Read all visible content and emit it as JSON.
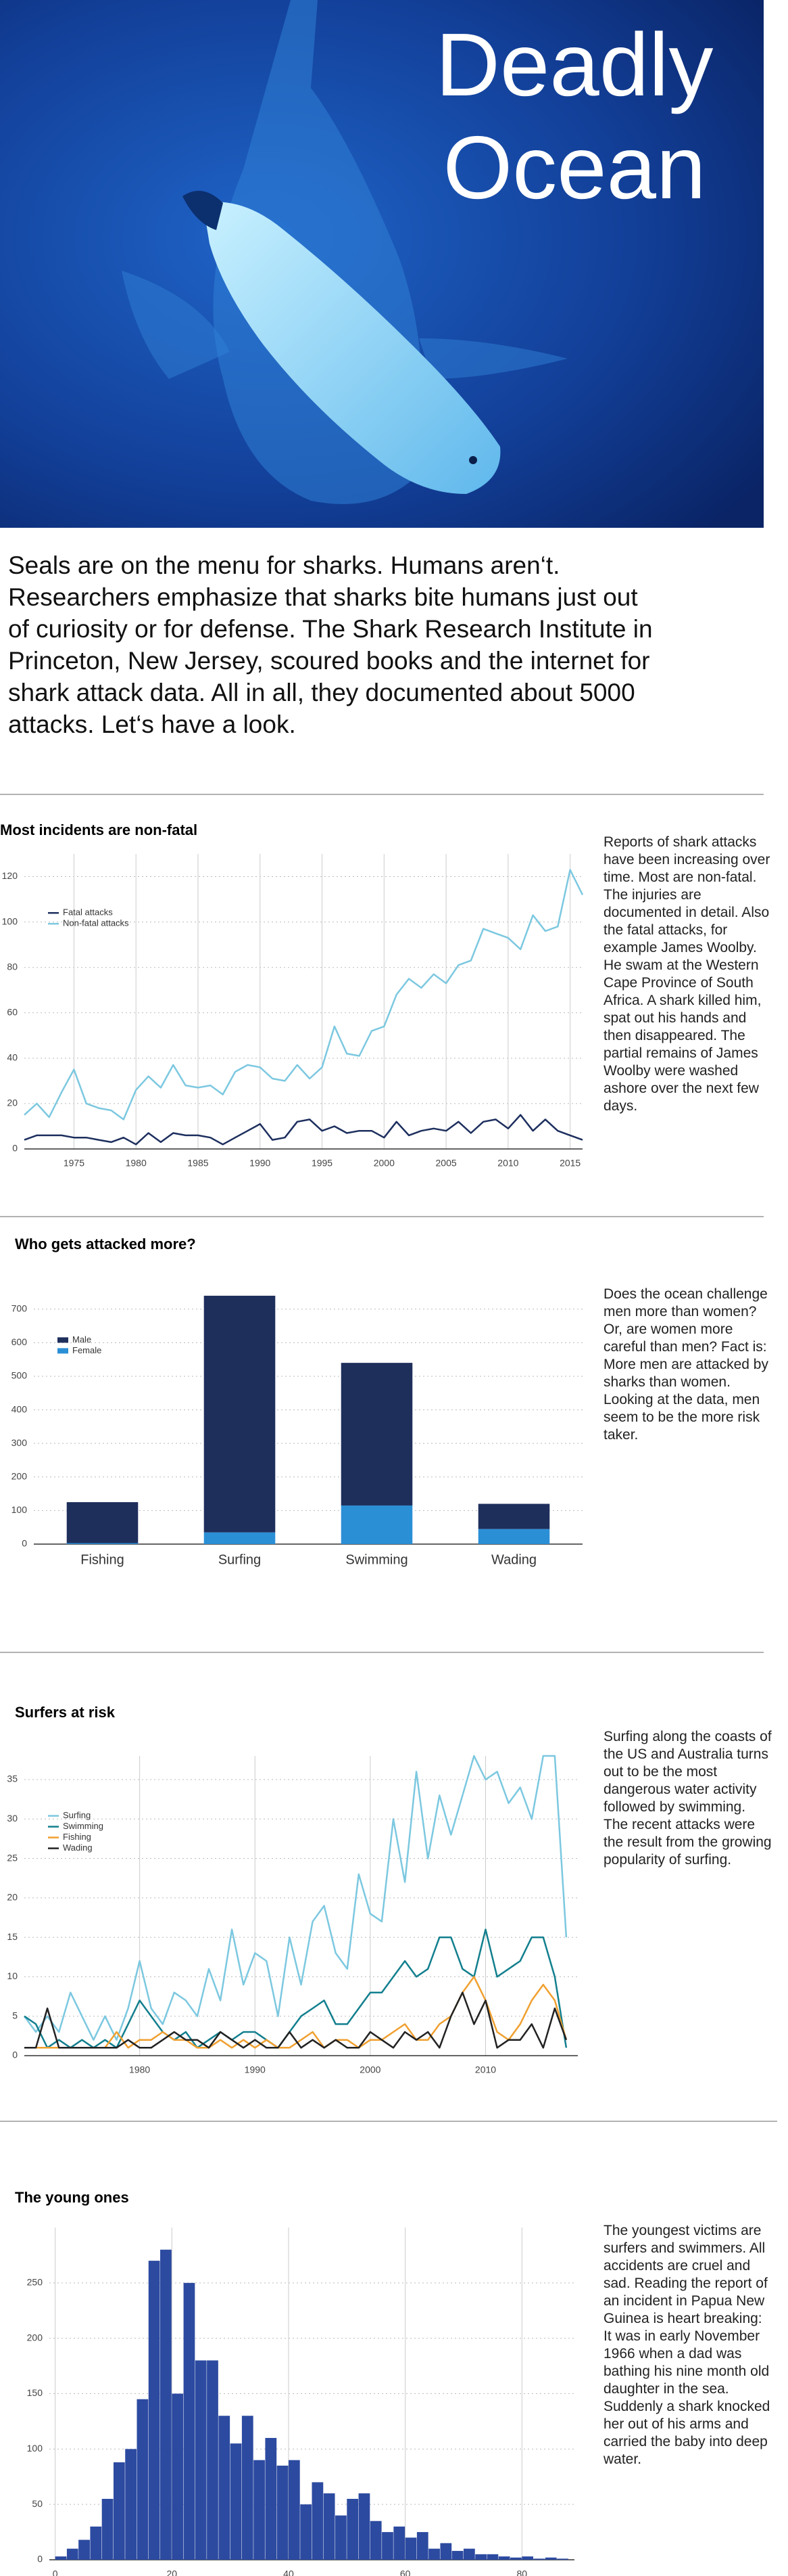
{
  "hero": {
    "title": "Deadly Ocean"
  },
  "intro": "Seals are on the menu for sharks. Humans aren‘t. Researchers emphasize that sharks bite humans just out of curiosity or for defense. The Shark Research Institute in Princeton, New Jersey, scoured books and the internet for shark attack data. All in all, they documented about 5000 attacks. Let‘s have a look.",
  "chart_data": [
    {
      "type": "line",
      "title": "Most incidents are non-fatal",
      "text": "Reports of shark attacks have been increasing over time. Most are non-fatal. The injuries are documented in detail. Also the fatal attacks, for example James Woolby. He swam at the Western Cape Province of South Africa. A shark killed him, spat out his hands and then disappeared. The partial remains of James Woolby were washed ashore over the next few days.",
      "x": [
        1971,
        1972,
        1973,
        1974,
        1975,
        1976,
        1977,
        1978,
        1979,
        1980,
        1981,
        1982,
        1983,
        1984,
        1985,
        1986,
        1987,
        1988,
        1989,
        1990,
        1991,
        1992,
        1993,
        1994,
        1995,
        1996,
        1997,
        1998,
        1999,
        2000,
        2001,
        2002,
        2003,
        2004,
        2005,
        2006,
        2007,
        2008,
        2009,
        2010,
        2011,
        2012,
        2013,
        2014,
        2015,
        2016
      ],
      "series": [
        {
          "name": "Fatal attacks",
          "color": "#1d2f5e",
          "values": [
            4,
            6,
            6,
            6,
            5,
            5,
            4,
            3,
            5,
            2,
            7,
            3,
            7,
            6,
            6,
            5,
            2,
            5,
            8,
            11,
            4,
            5,
            12,
            13,
            8,
            10,
            7,
            8,
            8,
            5,
            12,
            6,
            8,
            9,
            8,
            12,
            7,
            12,
            13,
            9,
            15,
            8,
            13,
            8,
            6,
            4
          ]
        },
        {
          "name": "Non-fatal attacks",
          "color": "#7cc8e0",
          "values": [
            15,
            20,
            14,
            25,
            35,
            20,
            18,
            17,
            13,
            26,
            32,
            27,
            37,
            28,
            27,
            28,
            24,
            34,
            37,
            36,
            31,
            30,
            37,
            31,
            36,
            54,
            42,
            41,
            52,
            54,
            68,
            75,
            71,
            77,
            73,
            81,
            83,
            97,
            95,
            93,
            88,
            103,
            96,
            98,
            123,
            112
          ]
        }
      ],
      "xlim": [
        1971,
        2016
      ],
      "xticks": [
        1975,
        1980,
        1985,
        1990,
        1995,
        2000,
        2005,
        2010,
        2015
      ],
      "ylim": [
        0,
        130
      ],
      "yticks": [
        0,
        20,
        40,
        60,
        80,
        100,
        120
      ],
      "grid": true,
      "legend": "upper left"
    },
    {
      "type": "bar",
      "title": "Who gets attacked more?",
      "text": "Does the ocean challenge men more than women? Or, are women more careful than men? Fact is: More men are attacked by sharks than women. Looking at the data, men seem to be the more risk taker.",
      "categories": [
        "Fishing",
        "Surfing",
        "Swimming",
        "Wading"
      ],
      "series": [
        {
          "name": "Male",
          "color": "#1e2f5c",
          "values": [
            122,
            705,
            425,
            75
          ]
        },
        {
          "name": "Female",
          "color": "#2b8fd6",
          "values": [
            3,
            35,
            115,
            45
          ]
        }
      ],
      "stacked": true,
      "ylim": [
        0,
        760
      ],
      "yticks": [
        0,
        100,
        200,
        300,
        400,
        500,
        600,
        700
      ],
      "grid": true,
      "legend": "upper left"
    },
    {
      "type": "line",
      "title": "Surfers at risk",
      "text": "Surfing along the coasts of the US and  Australia turns out to be the most dangerous water activity followed by swimming. The recent attacks were the result from the growing popularity of surfing.",
      "x": [
        1970,
        1971,
        1972,
        1973,
        1974,
        1975,
        1976,
        1977,
        1978,
        1979,
        1980,
        1981,
        1982,
        1983,
        1984,
        1985,
        1986,
        1987,
        1988,
        1989,
        1990,
        1991,
        1992,
        1993,
        1994,
        1995,
        1996,
        1997,
        1998,
        1999,
        2000,
        2001,
        2002,
        2003,
        2004,
        2005,
        2006,
        2007,
        2008,
        2009,
        2010,
        2011,
        2012,
        2013,
        2014,
        2015,
        2016,
        2017
      ],
      "series": [
        {
          "name": "Surfing",
          "color": "#7cc8e0",
          "values": [
            5,
            3,
            5,
            3,
            8,
            5,
            2,
            5,
            2,
            6,
            12,
            6,
            4,
            8,
            7,
            5,
            11,
            7,
            16,
            9,
            13,
            12,
            5,
            15,
            9,
            17,
            19,
            13,
            11,
            23,
            18,
            17,
            30,
            22,
            36,
            25,
            33,
            28,
            33,
            38,
            35,
            36,
            32,
            34,
            30,
            38,
            38,
            15
          ]
        },
        {
          "name": "Swimming",
          "color": "#127f8e",
          "values": [
            5,
            4,
            1,
            2,
            1,
            2,
            1,
            2,
            1,
            4,
            7,
            5,
            3,
            2,
            3,
            1,
            2,
            3,
            2,
            3,
            3,
            2,
            1,
            3,
            5,
            6,
            7,
            4,
            4,
            6,
            8,
            8,
            10,
            12,
            10,
            11,
            15,
            15,
            11,
            10,
            16,
            10,
            11,
            12,
            15,
            15,
            10,
            1
          ]
        },
        {
          "name": "Fishing",
          "color": "#f0a030",
          "values": [
            1,
            1,
            1,
            1,
            1,
            1,
            1,
            1,
            3,
            1,
            2,
            2,
            3,
            2,
            2,
            1,
            1,
            2,
            1,
            2,
            1,
            2,
            1,
            1,
            2,
            3,
            1,
            2,
            2,
            1,
            2,
            2,
            3,
            4,
            2,
            2,
            4,
            5,
            8,
            10,
            7,
            3,
            2,
            4,
            7,
            9,
            7,
            2
          ]
        },
        {
          "name": "Wading",
          "color": "#222222",
          "values": [
            1,
            1,
            6,
            1,
            1,
            1,
            1,
            1,
            1,
            2,
            1,
            1,
            2,
            3,
            2,
            2,
            1,
            3,
            2,
            1,
            2,
            1,
            1,
            3,
            1,
            2,
            1,
            2,
            1,
            1,
            3,
            2,
            1,
            3,
            2,
            3,
            1,
            5,
            8,
            4,
            7,
            1,
            2,
            2,
            4,
            1,
            6,
            2
          ]
        }
      ],
      "xlim": [
        1970,
        2018
      ],
      "xticks": [
        1980,
        1990,
        2000,
        2010
      ],
      "ylim": [
        0,
        38
      ],
      "yticks": [
        0,
        5,
        10,
        15,
        20,
        25,
        30,
        35
      ],
      "grid": true,
      "legend": "upper left"
    },
    {
      "type": "histogram",
      "title": "The young ones",
      "text": "The youngest victims are surfers and swimmers. All accidents are cruel and sad. Reading the report of an incident in Papua New Guinea is heart breaking: It was in early November 1966 when a dad was bathing his nine month old daughter in the sea. Suddenly a shark knocked her out of his arms and carried the baby into deep water.",
      "bins": [
        0,
        2,
        4,
        6,
        8,
        10,
        12,
        14,
        16,
        18,
        20,
        22,
        24,
        26,
        28,
        30,
        32,
        34,
        36,
        38,
        40,
        42,
        44,
        46,
        48,
        50,
        52,
        54,
        56,
        58,
        60,
        62,
        64,
        66,
        68,
        70,
        72,
        74,
        76,
        78,
        80,
        82,
        84,
        86,
        88
      ],
      "counts": [
        3,
        10,
        18,
        30,
        55,
        88,
        100,
        145,
        270,
        280,
        150,
        250,
        180,
        180,
        130,
        105,
        130,
        90,
        110,
        85,
        90,
        50,
        70,
        60,
        40,
        55,
        60,
        35,
        25,
        30,
        20,
        25,
        10,
        15,
        8,
        10,
        5,
        5,
        3,
        2,
        3,
        1,
        2,
        1
      ],
      "color": "#2c4aa0",
      "xlim": [
        -1,
        89
      ],
      "xticks": [
        0,
        20,
        40,
        60,
        80
      ],
      "ylim": [
        0,
        300
      ],
      "yticks": [
        0,
        50,
        100,
        150,
        200,
        250
      ],
      "grid": true
    }
  ]
}
